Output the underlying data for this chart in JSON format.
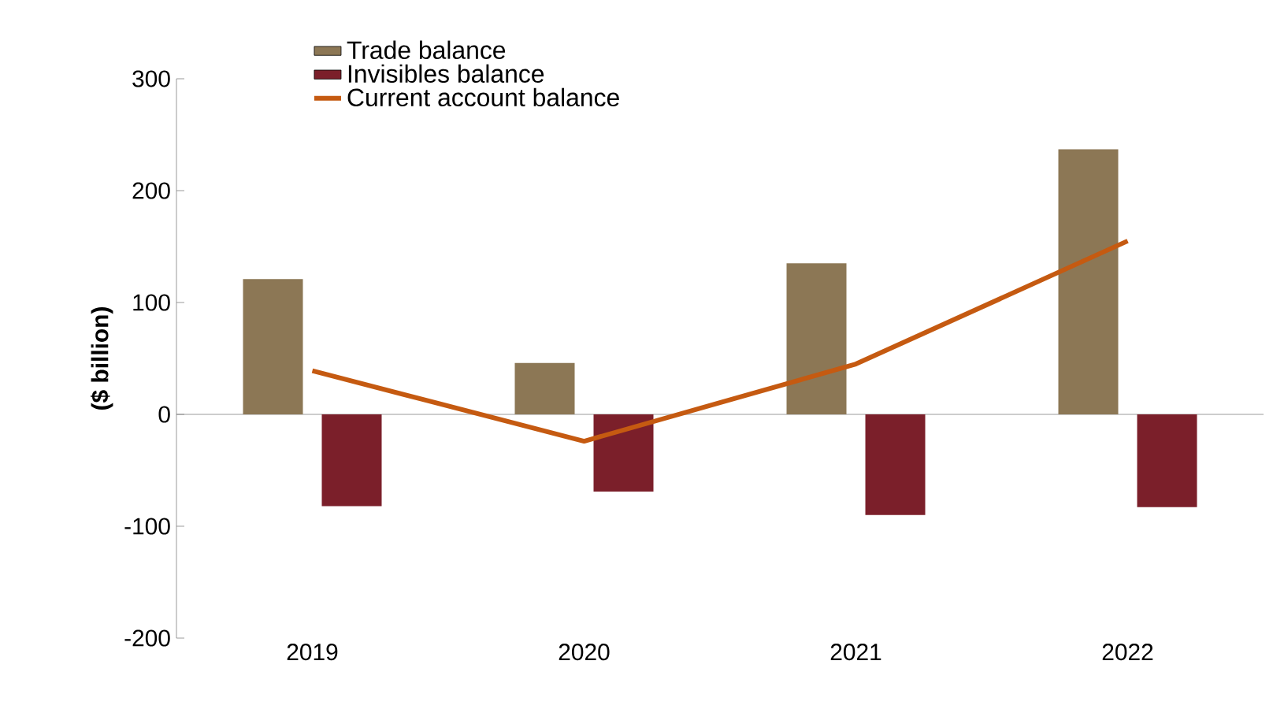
{
  "chart_data": {
    "type": "bar",
    "ylabel": "**($ billion)**",
    "categories": [
      "2019",
      "2020",
      "2021",
      "2022"
    ],
    "series": [
      {
        "name": "Trade balance",
        "color": "#8c7755",
        "values": [
          121,
          46,
          135,
          237
        ]
      },
      {
        "name": "Invisibles balance",
        "color": "#7b1f2a",
        "values": [
          -82,
          -69,
          -90,
          -83
        ]
      },
      {
        "name": "Current account balance",
        "color": "#c55a11",
        "type": "line",
        "values": [
          39,
          -24,
          45,
          155
        ]
      }
    ],
    "ylim": [
      -200,
      300
    ],
    "yticks": [
      -200,
      -100,
      0,
      100,
      200,
      300
    ],
    "legend": "top"
  }
}
